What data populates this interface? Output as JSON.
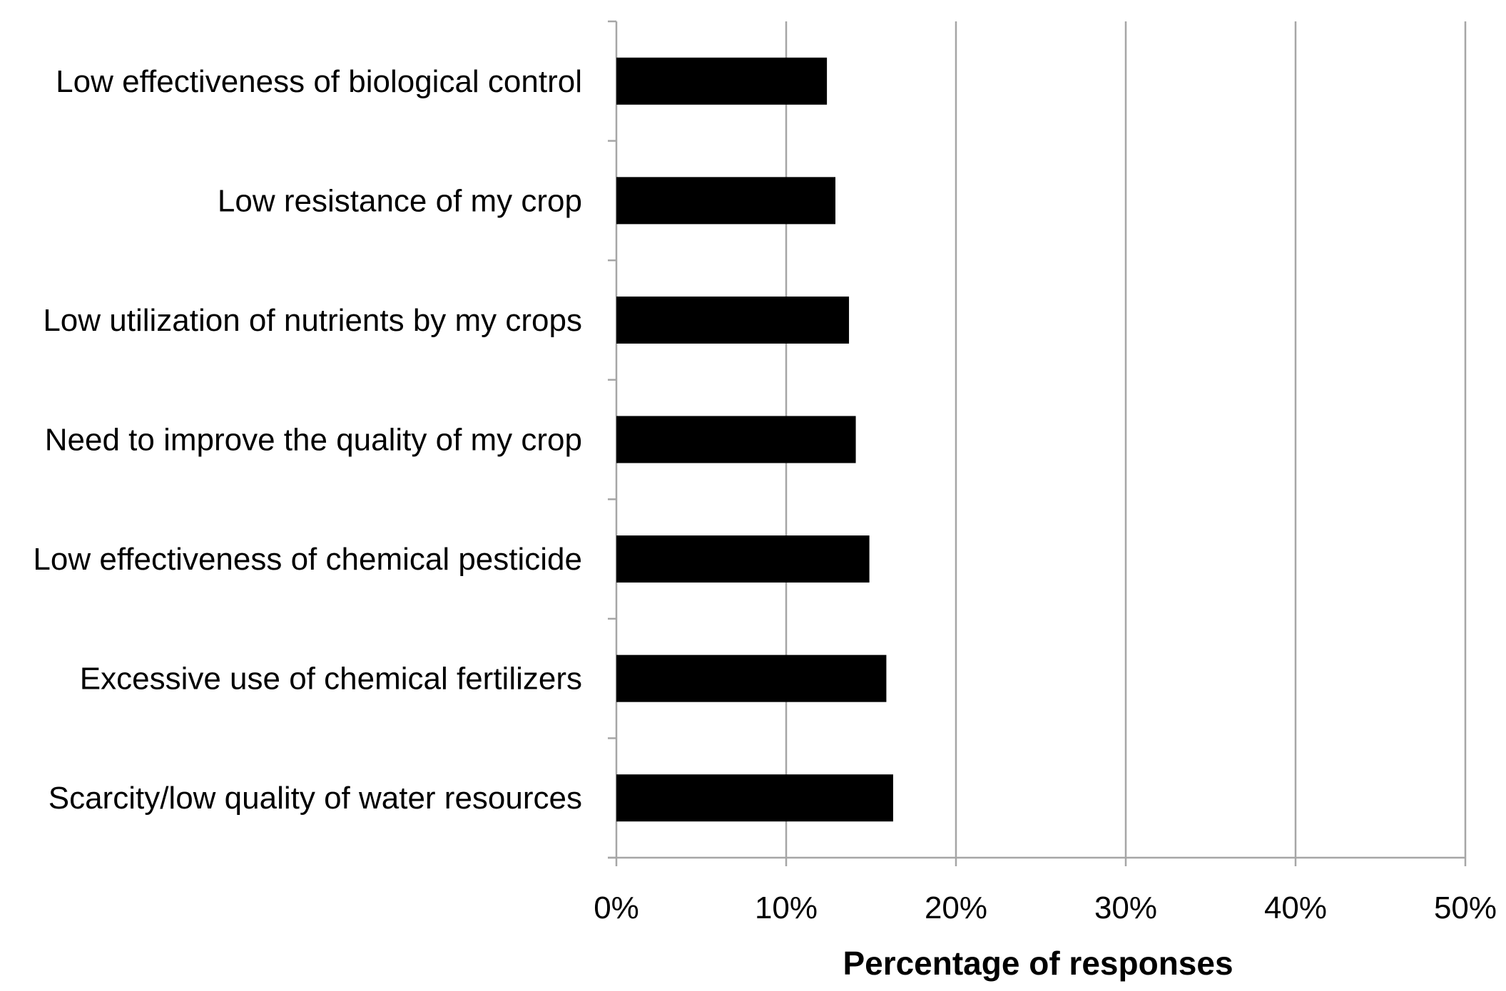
{
  "chart_data": {
    "type": "bar",
    "orientation": "horizontal",
    "title": "",
    "xlabel": "Percentage of responses",
    "ylabel": "",
    "categories": [
      "Low effectiveness of biological control",
      "Low resistance of my crop",
      "Low utilization of nutrients by my crops",
      "Need to improve the quality of my crop",
      "Low effectiveness of chemical pesticide",
      "Excessive use of chemical fertilizers",
      "Scarcity/low quality of water resources"
    ],
    "values": [
      12.4,
      12.9,
      13.7,
      14.1,
      14.9,
      15.9,
      16.3
    ],
    "xlim": [
      0,
      50
    ],
    "x_ticks": [
      0,
      10,
      20,
      30,
      40,
      50
    ],
    "x_tick_labels": [
      "0%",
      "10%",
      "20%",
      "30%",
      "40%",
      "50%"
    ],
    "grid": "vertical",
    "legend": "none",
    "colors": {
      "bar": "#000000",
      "grid": "#a6a6a6",
      "axis": "#a6a6a6"
    }
  }
}
